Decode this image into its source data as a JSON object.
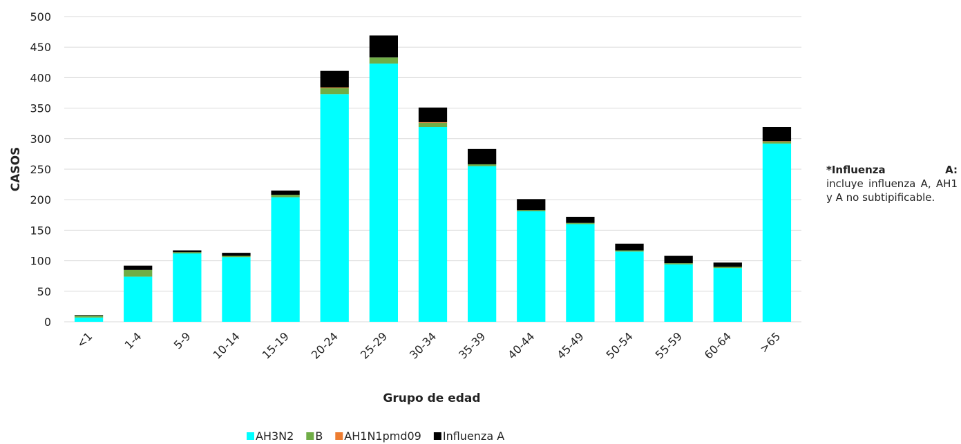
{
  "chart_data": {
    "type": "stacked_bar",
    "categories": [
      "<1",
      "1-4",
      "5-9",
      "10-14",
      "15-19",
      "20-24",
      "25-29",
      "30-34",
      "35-39",
      "40-44",
      "45-49",
      "50-54",
      "55-59",
      "60-64",
      ">65"
    ],
    "series": [
      {
        "name": "AH3N2",
        "color": "#00ffff",
        "values": [
          7,
          74,
          112,
          106,
          204,
          373,
          423,
          319,
          255,
          181,
          160,
          115,
          94,
          88,
          292
        ]
      },
      {
        "name": "B",
        "color": "#70ad47",
        "values": [
          3,
          11,
          2,
          2,
          4,
          10,
          10,
          7,
          3,
          2,
          2,
          2,
          2,
          2,
          3
        ]
      },
      {
        "name": "AH1N1pmd09",
        "color": "#ed7d31",
        "values": [
          0,
          0,
          0,
          0,
          0,
          1,
          0,
          1,
          0,
          0,
          0,
          0,
          0,
          0,
          1
        ]
      },
      {
        "name": "Influenza A",
        "color": "#000000",
        "values": [
          1,
          7,
          3,
          5,
          7,
          27,
          36,
          24,
          25,
          18,
          10,
          11,
          12,
          7,
          23
        ]
      }
    ],
    "ylim": [
      0,
      500
    ],
    "yticks": [
      0,
      50,
      100,
      150,
      200,
      250,
      300,
      350,
      400,
      450,
      500
    ],
    "grid": true,
    "y_label": "CASOS",
    "x_label": "Grupo de edad",
    "annotation": {
      "label": "*Influenza A:",
      "text": "incluye influenza A, AH1 y A no subtipificable."
    }
  }
}
